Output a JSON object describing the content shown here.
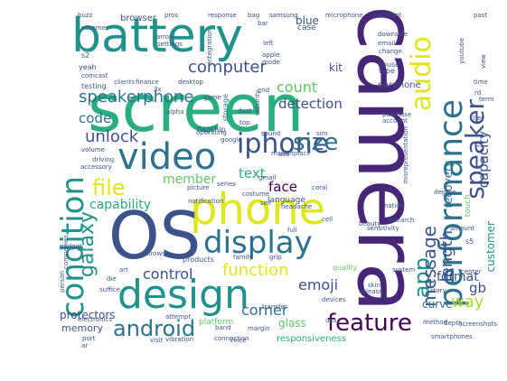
{
  "palette": {
    "dark_purple": "#440154",
    "purple": "#482677",
    "indigo": "#3b528b",
    "blue": "#2c728e",
    "teal": "#21918c",
    "green_teal": "#28ae80",
    "green": "#5ec962",
    "lime": "#addc30",
    "yellow": "#e0e61c"
  },
  "words": [
    {
      "text": "camera",
      "color": "#482677"
    },
    {
      "text": "screen",
      "color": "#28ae80"
    },
    {
      "text": "battery",
      "color": "#21918c"
    },
    {
      "text": "phone",
      "color": "#e0e61c"
    },
    {
      "text": "OS",
      "color": "#3b528b"
    },
    {
      "text": "design",
      "color": "#21918c"
    },
    {
      "text": "video",
      "color": "#2c728e"
    },
    {
      "text": "display",
      "color": "#2c728e"
    },
    {
      "text": "condition",
      "color": "#21918c"
    },
    {
      "text": "performance",
      "color": "#2c728e"
    },
    {
      "text": "speaker",
      "color": "#3b528b"
    },
    {
      "text": "iphone",
      "color": "#3b528b"
    },
    {
      "text": "audio",
      "color": "#e0e61c"
    },
    {
      "text": "feature",
      "color": "#440154"
    },
    {
      "text": "android",
      "color": "#2c728e"
    },
    {
      "text": "size",
      "color": "#2c728e"
    },
    {
      "text": "file",
      "color": "#e0e61c"
    },
    {
      "text": "app",
      "color": "#21918c"
    },
    {
      "text": "computer",
      "color": "#3b528b"
    },
    {
      "text": "galaxy",
      "color": "#21918c"
    },
    {
      "text": "speakerphone",
      "color": "#2c728e"
    },
    {
      "text": "message",
      "color": "#3b528b"
    },
    {
      "text": "function",
      "color": "#e0e61c"
    },
    {
      "text": "length",
      "color": "#3b528b"
    },
    {
      "text": "unlock",
      "color": "#3b528b"
    },
    {
      "text": "capacity",
      "color": "#3b528b"
    },
    {
      "text": "count",
      "color": "#5ec962"
    },
    {
      "text": "control",
      "color": "#3b528b"
    },
    {
      "text": "emoji",
      "color": "#3b528b"
    },
    {
      "text": "code",
      "color": "#2c728e"
    },
    {
      "text": "detection",
      "color": "#3b528b"
    },
    {
      "text": "corner",
      "color": "#2c728e"
    },
    {
      "text": "text",
      "color": "#28ae80"
    },
    {
      "text": "face",
      "color": "#440154"
    },
    {
      "text": "member",
      "color": "#5ec962"
    },
    {
      "text": "capability",
      "color": "#28ae80"
    },
    {
      "text": "way",
      "color": "#addc30"
    },
    {
      "text": "format",
      "color": "#3b528b"
    },
    {
      "text": "gb",
      "color": "#3b528b"
    },
    {
      "text": "protectors",
      "color": "#3b528b"
    },
    {
      "text": "blue",
      "color": "#3b528b"
    },
    {
      "text": "kit",
      "color": "#3b528b"
    },
    {
      "text": "customer",
      "color": "#21918c"
    },
    {
      "text": "recovery",
      "color": "#2c728e"
    },
    {
      "text": "glass",
      "color": "#5ec962"
    },
    {
      "text": "memory",
      "color": "#3b528b"
    },
    {
      "text": "curve",
      "color": "#2c728e"
    },
    {
      "text": "browser",
      "color": "#3b528b"
    },
    {
      "text": "earphone",
      "color": "#3b528b"
    },
    {
      "text": "language",
      "color": "#3b528b"
    },
    {
      "text": "case",
      "color": "#3b528b"
    },
    {
      "text": "touch",
      "color": "#5ec962"
    },
    {
      "text": "responsiveness",
      "color": "#28ae80"
    },
    {
      "text": "platform",
      "color": "#5ec962"
    },
    {
      "text": "quality",
      "color": "#5ec962"
    },
    {
      "text": "products",
      "color": "#3b528b"
    },
    {
      "text": "storage",
      "color": "#2c728e"
    },
    {
      "text": "testing",
      "color": "#3b528b"
    },
    {
      "text": "flagship",
      "color": "#3b528b"
    },
    {
      "text": "microphone",
      "color": "#3b528b"
    },
    {
      "text": "samsung",
      "color": "#3b528b"
    },
    {
      "text": "assistant",
      "color": "#3b528b"
    },
    {
      "text": "response",
      "color": "#3b528b"
    },
    {
      "text": "desktop",
      "color": "#3b528b"
    },
    {
      "text": "operating",
      "color": "#3b528b"
    },
    {
      "text": "buzz",
      "color": "#3b528b"
    },
    {
      "text": "past",
      "color": "#3b528b"
    },
    {
      "text": "yeah",
      "color": "#3b528b"
    },
    {
      "text": "house",
      "color": "#3b528b"
    },
    {
      "text": "type",
      "color": "#3b528b"
    },
    {
      "text": "apple",
      "color": "#3b528b"
    },
    {
      "text": "mode",
      "color": "#3b528b"
    },
    {
      "text": "left",
      "color": "#3b528b"
    },
    {
      "text": "change",
      "color": "#3b528b"
    },
    {
      "text": "account",
      "color": "#3b528b"
    },
    {
      "text": "purchase",
      "color": "#3b528b"
    },
    {
      "text": "driving",
      "color": "#3b528b"
    },
    {
      "text": "volume",
      "color": "#3b528b"
    },
    {
      "text": "accessory",
      "color": "#3b528b"
    },
    {
      "text": "picture",
      "color": "#3b528b"
    },
    {
      "text": "marketplace",
      "color": "#3b528b"
    },
    {
      "text": "sound",
      "color": "#3b528b"
    },
    {
      "text": "headache",
      "color": "#3b528b"
    },
    {
      "text": "nation",
      "color": "#3b528b"
    },
    {
      "text": "beauty",
      "color": "#3b528b"
    },
    {
      "text": "research",
      "color": "#3b528b"
    },
    {
      "text": "center",
      "color": "#3b528b"
    },
    {
      "text": "story",
      "color": "#3b528b"
    },
    {
      "text": "devices",
      "color": "#3b528b"
    },
    {
      "text": "release",
      "color": "#3b528b"
    },
    {
      "text": "method",
      "color": "#3b528b"
    },
    {
      "text": "smartphones",
      "color": "#3b528b"
    },
    {
      "text": "connection",
      "color": "#3b528b"
    },
    {
      "text": "vibration",
      "color": "#3b528b"
    },
    {
      "text": "voice",
      "color": "#3b528b"
    },
    {
      "text": "port",
      "color": "#3b528b"
    },
    {
      "text": "visit",
      "color": "#3b528b"
    },
    {
      "text": "attempt",
      "color": "#3b528b"
    },
    {
      "text": "transfer",
      "color": "#3b528b"
    },
    {
      "text": "family",
      "color": "#3b528b"
    },
    {
      "text": "die",
      "color": "#3b528b"
    },
    {
      "text": "person",
      "color": "#3b528b"
    },
    {
      "text": "gadget",
      "color": "#3b528b"
    },
    {
      "text": "companies",
      "color": "#3b528b"
    },
    {
      "text": "electronics",
      "color": "#3b528b"
    },
    {
      "text": "system",
      "color": "#3b528b"
    },
    {
      "text": "sesame",
      "color": "#3b528b"
    },
    {
      "text": "arrow",
      "color": "#3b528b"
    },
    {
      "text": "settings",
      "color": "#3b528b"
    },
    {
      "text": "comcast",
      "color": "#3b528b"
    },
    {
      "text": "clients",
      "color": "#3b528b"
    },
    {
      "text": "finance",
      "color": "#3b528b"
    },
    {
      "text": "alpha",
      "color": "#3b528b"
    },
    {
      "text": "google",
      "color": "#3b528b"
    },
    {
      "text": "dust",
      "color": "#3b528b"
    },
    {
      "text": "game",
      "color": "#3b528b"
    },
    {
      "text": "costume",
      "color": "#3b528b"
    },
    {
      "text": "series",
      "color": "#3b528b"
    },
    {
      "text": "use",
      "color": "#3b528b"
    },
    {
      "text": "coral",
      "color": "#3b528b"
    },
    {
      "text": "gmail",
      "color": "#3b528b"
    },
    {
      "text": "skin",
      "color": "#3b528b"
    },
    {
      "text": "grip",
      "color": "#3b528b"
    },
    {
      "text": "full",
      "color": "#3b528b"
    },
    {
      "text": "sim",
      "color": "#3b528b"
    },
    {
      "text": "sensitivity",
      "color": "#3b528b"
    },
    {
      "text": "amount",
      "color": "#3b528b"
    },
    {
      "text": "depth",
      "color": "#3b528b"
    },
    {
      "text": "misrepresentation",
      "color": "#3b528b"
    },
    {
      "text": "youtube",
      "color": "#3b528b"
    },
    {
      "text": "rd",
      "color": "#3b528b"
    },
    {
      "text": "term",
      "color": "#3b528b"
    },
    {
      "text": "time",
      "color": "#3b528b"
    },
    {
      "text": "tier",
      "color": "#3b528b"
    },
    {
      "text": "downside",
      "color": "#3b528b"
    },
    {
      "text": "degree",
      "color": "#3b528b"
    },
    {
      "text": "s5",
      "color": "#3b528b"
    },
    {
      "text": "s2",
      "color": "#3b528b"
    },
    {
      "text": "3x",
      "color": "#3b528b"
    },
    {
      "text": "pros",
      "color": "#3b528b"
    },
    {
      "text": "top",
      "color": "#3b528b"
    },
    {
      "text": "end",
      "color": "#3b528b"
    },
    {
      "text": "usa",
      "color": "#3b528b"
    },
    {
      "text": "sell",
      "color": "#3b528b"
    },
    {
      "text": "band",
      "color": "#3b528b"
    },
    {
      "text": "art",
      "color": "#3b528b"
    },
    {
      "text": "ar",
      "color": "#3b528b"
    },
    {
      "text": "bag",
      "color": "#3b528b"
    },
    {
      "text": "bar",
      "color": "#3b528b"
    },
    {
      "text": "email",
      "color": "#3b528b"
    },
    {
      "text": "notification",
      "color": "#3b528b"
    },
    {
      "text": "integration",
      "color": "#3b528b"
    },
    {
      "text": "security",
      "color": "#3b528b"
    },
    {
      "text": "cell",
      "color": "#3b528b"
    },
    {
      "text": "margin",
      "color": "#3b528b"
    },
    {
      "text": "suffice",
      "color": "#3b528b"
    },
    {
      "text": "browse",
      "color": "#3b528b"
    },
    {
      "text": "view",
      "color": "#3b528b"
    },
    {
      "text": "screenshots",
      "color": "#3b528b"
    }
  ]
}
